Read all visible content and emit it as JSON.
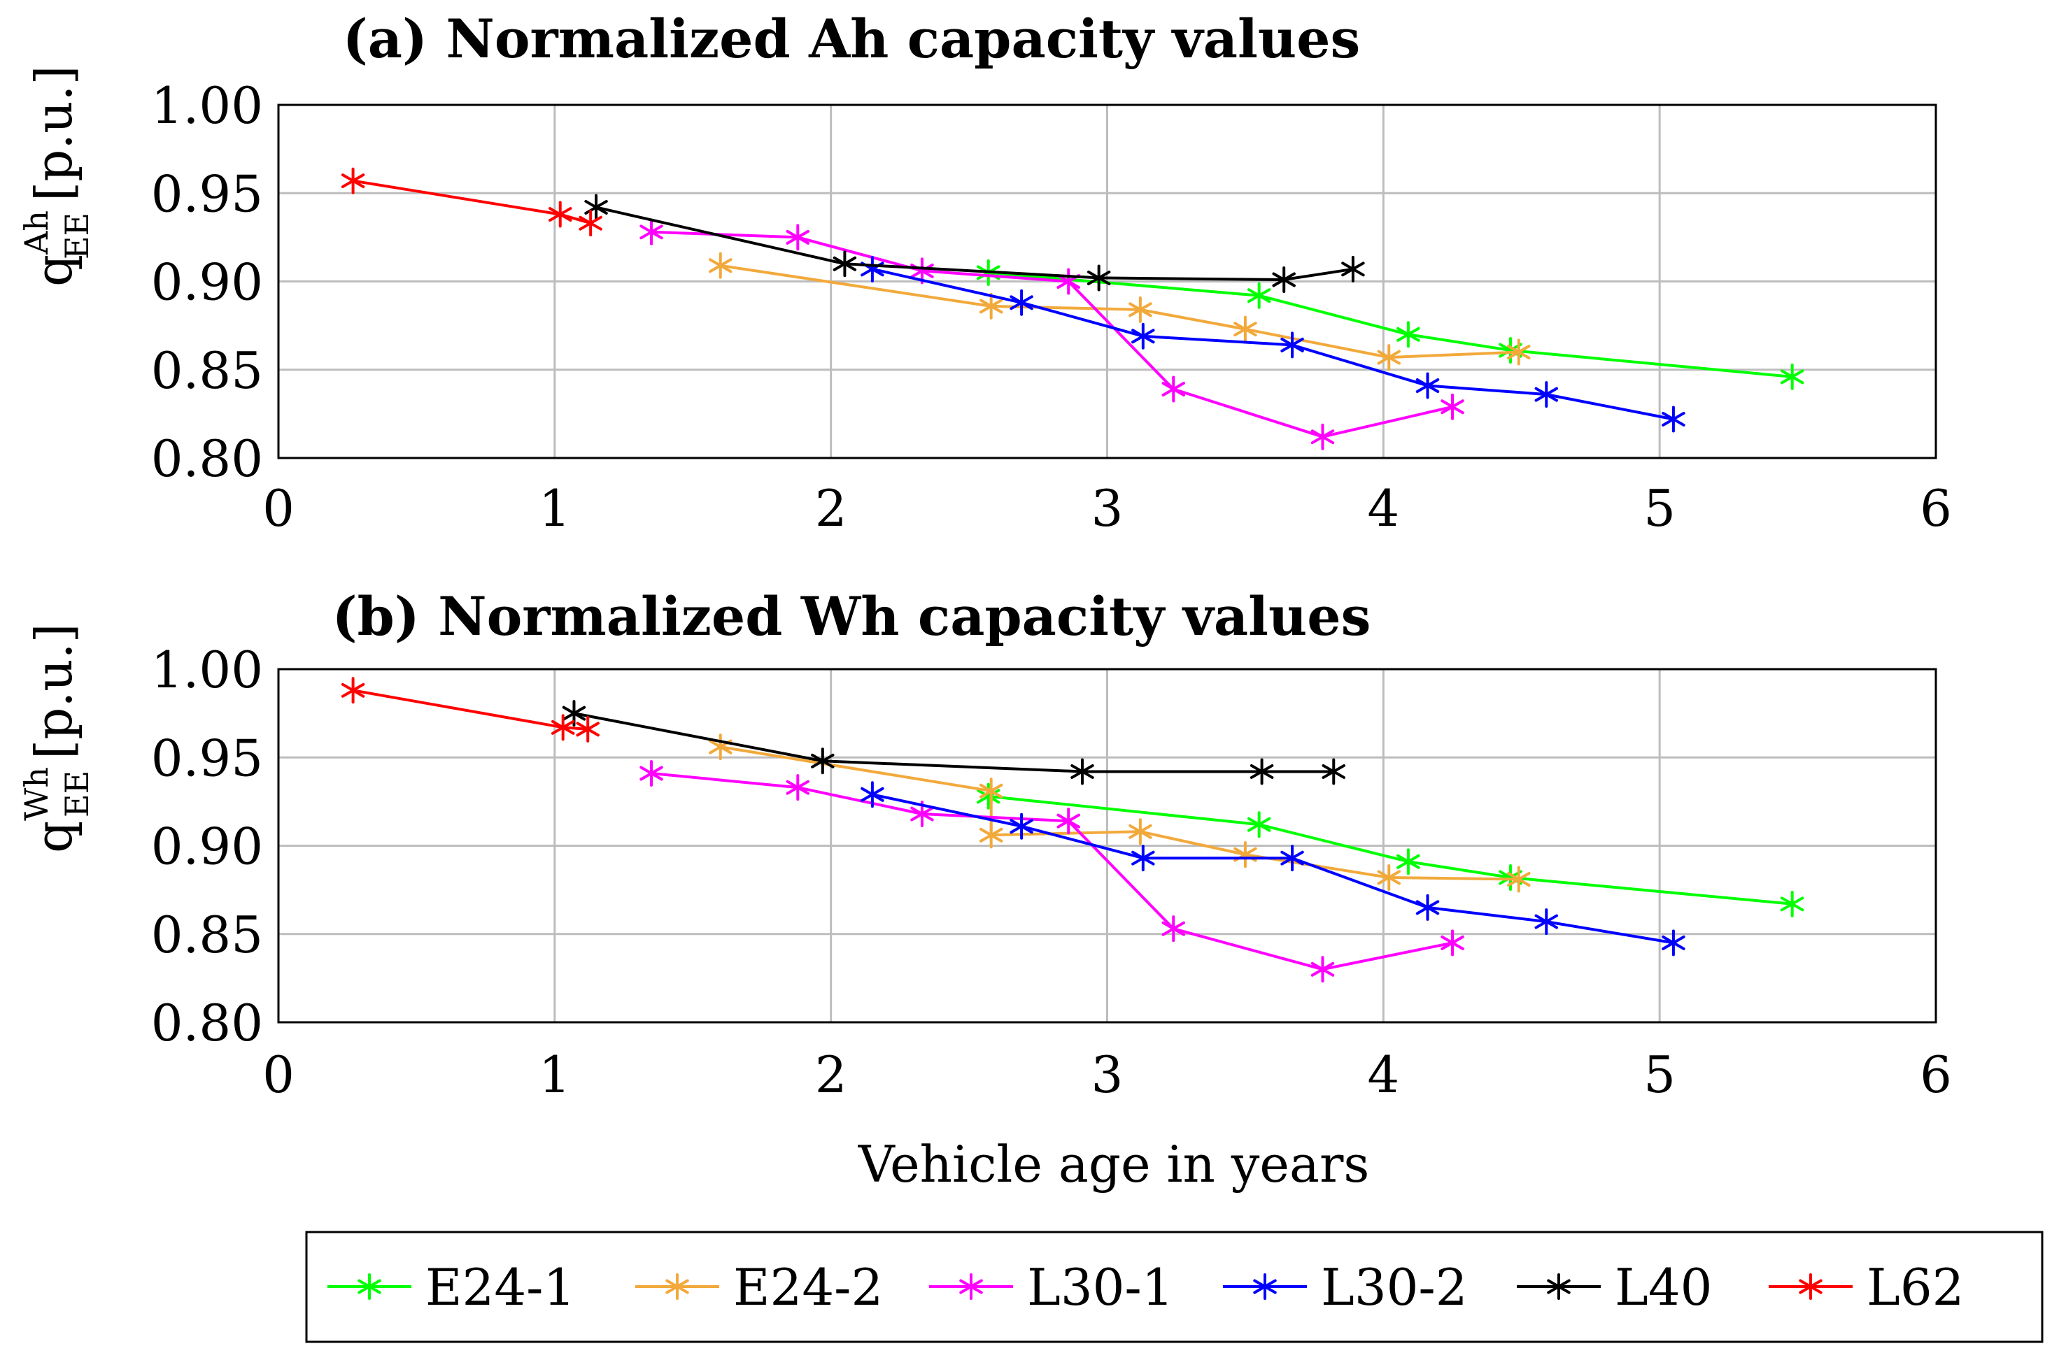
{
  "chart_data": [
    {
      "type": "line",
      "title": "(a) Normalized Ah capacity values",
      "xlabel": "",
      "ylabel": {
        "base": "q",
        "superscript": "Ah",
        "subscript": "EE",
        "unit": "[p.u.]"
      },
      "xlim": [
        0,
        6
      ],
      "ylim": [
        0.8,
        1.0
      ],
      "xticks": [
        "0",
        "1",
        "2",
        "3",
        "4",
        "5",
        "6"
      ],
      "yticks": [
        "0.80",
        "0.85",
        "0.90",
        "0.95",
        "1.00"
      ],
      "grid": true,
      "marker": "asterisk",
      "series": [
        {
          "name": "E24-1",
          "color": "#00ff00",
          "x": [
            2.57,
            3.55,
            4.09,
            4.46,
            5.48
          ],
          "y": [
            0.905,
            0.892,
            0.87,
            0.861,
            0.846
          ]
        },
        {
          "name": "E24-2",
          "color": "#f2a93b",
          "x": [
            1.6,
            2.58,
            3.12,
            3.5,
            4.02,
            4.49
          ],
          "y": [
            0.909,
            0.886,
            0.884,
            0.873,
            0.857,
            0.86
          ]
        },
        {
          "name": "L30-1",
          "color": "#ff00ff",
          "x": [
            1.35,
            1.88,
            2.33,
            2.86,
            3.24,
            3.78,
            4.25
          ],
          "y": [
            0.928,
            0.925,
            0.906,
            0.9,
            0.839,
            0.812,
            0.829
          ]
        },
        {
          "name": "L30-2",
          "color": "#0000ff",
          "x": [
            2.15,
            2.69,
            3.13,
            3.67,
            4.16,
            4.59,
            5.05
          ],
          "y": [
            0.907,
            0.888,
            0.869,
            0.864,
            0.841,
            0.836,
            0.822
          ]
        },
        {
          "name": "L40",
          "color": "#000000",
          "x": [
            1.15,
            2.05,
            2.97,
            3.64,
            3.89
          ],
          "y": [
            0.942,
            0.91,
            0.902,
            0.901,
            0.907
          ]
        },
        {
          "name": "L62",
          "color": "#ff0000",
          "x": [
            0.27,
            1.02,
            1.13
          ],
          "y": [
            0.957,
            0.938,
            0.933
          ]
        }
      ]
    },
    {
      "type": "line",
      "title": "(b) Normalized Wh capacity values",
      "xlabel": "Vehicle age in years",
      "ylabel": {
        "base": "q",
        "superscript": "Wh",
        "subscript": "EE",
        "unit": "[p.u.]"
      },
      "xlim": [
        0,
        6
      ],
      "ylim": [
        0.8,
        1.0
      ],
      "xticks": [
        "0",
        "1",
        "2",
        "3",
        "4",
        "5",
        "6"
      ],
      "yticks": [
        "0.80",
        "0.85",
        "0.90",
        "0.95",
        "1.00"
      ],
      "grid": true,
      "marker": "asterisk",
      "series": [
        {
          "name": "E24-1",
          "color": "#00ff00",
          "x": [
            2.57,
            3.55,
            4.09,
            4.46,
            5.48
          ],
          "y": [
            0.928,
            0.912,
            0.891,
            0.882,
            0.867
          ]
        },
        {
          "name": "E24-2",
          "color": "#f2a93b",
          "x": [
            1.6,
            2.58,
            2.58,
            3.12,
            3.5,
            4.02,
            4.49
          ],
          "y": [
            0.956,
            0.931,
            0.906,
            0.908,
            0.895,
            0.882,
            0.881
          ]
        },
        {
          "name": "L30-1",
          "color": "#ff00ff",
          "x": [
            1.35,
            1.88,
            2.33,
            2.86,
            3.24,
            3.78,
            4.25
          ],
          "y": [
            0.941,
            0.933,
            0.918,
            0.914,
            0.853,
            0.83,
            0.845
          ]
        },
        {
          "name": "L30-2",
          "color": "#0000ff",
          "x": [
            2.15,
            2.69,
            3.13,
            3.67,
            4.16,
            4.59,
            5.05
          ],
          "y": [
            0.929,
            0.911,
            0.893,
            0.893,
            0.865,
            0.857,
            0.845
          ]
        },
        {
          "name": "L40",
          "color": "#000000",
          "x": [
            1.07,
            1.97,
            2.91,
            3.56,
            3.82
          ],
          "y": [
            0.975,
            0.948,
            0.942,
            0.942,
            0.942
          ]
        },
        {
          "name": "L62",
          "color": "#ff0000",
          "x": [
            0.27,
            1.03,
            1.12
          ],
          "y": [
            0.988,
            0.967,
            0.966
          ]
        }
      ]
    }
  ],
  "legend": {
    "position": "bottom",
    "entries": [
      {
        "label": "E24-1",
        "color": "#00ff00"
      },
      {
        "label": "E24-2",
        "color": "#f2a93b"
      },
      {
        "label": "L30-1",
        "color": "#ff00ff"
      },
      {
        "label": "L30-2",
        "color": "#0000ff"
      },
      {
        "label": "L40",
        "color": "#000000"
      },
      {
        "label": "L62",
        "color": "#ff0000"
      }
    ]
  }
}
